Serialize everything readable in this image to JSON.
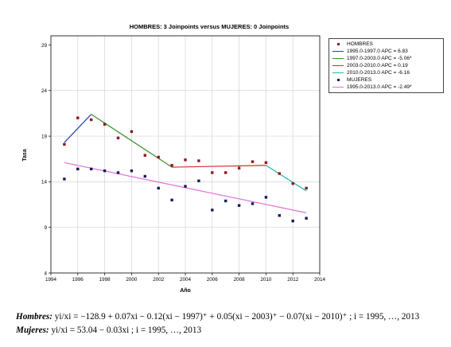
{
  "chart_data": {
    "type": "scatter",
    "title": "HOMBRES: 3 Joinpoints  versus  MUJERES: 0 Joinpoints",
    "xlabel": "Año",
    "ylabel": "Tasa",
    "xlim": [
      1994,
      2014
    ],
    "ylim": [
      4,
      30
    ],
    "xticks": [
      1994,
      1996,
      1998,
      2000,
      2002,
      2004,
      2006,
      2008,
      2010,
      2012,
      2014
    ],
    "yticks": [
      4,
      9,
      14,
      19,
      24,
      29
    ],
    "grid": true,
    "legend_placement": "outside-right",
    "series": [
      {
        "name": "HOMBRES",
        "color": "#8b1a1a",
        "x": [
          1995,
          1996,
          1997,
          1998,
          1999,
          2000,
          2001,
          2002,
          2003,
          2004,
          2005,
          2006,
          2007,
          2008,
          2009,
          2010,
          2011,
          2012,
          2013
        ],
        "y": [
          18.1,
          21.0,
          20.8,
          20.3,
          18.8,
          19.5,
          16.9,
          16.7,
          15.8,
          16.4,
          16.3,
          15.0,
          15.0,
          15.5,
          16.2,
          16.1,
          14.9,
          13.8,
          13.3
        ]
      },
      {
        "name": "MUJERES",
        "color": "#1a1a5a",
        "x": [
          1995,
          1996,
          1997,
          1998,
          1999,
          2000,
          2001,
          2002,
          2003,
          2004,
          2005,
          2006,
          2007,
          2008,
          2009,
          2010,
          2011,
          2012,
          2013
        ],
        "y": [
          14.3,
          15.4,
          15.4,
          15.2,
          15.0,
          15.2,
          14.6,
          13.3,
          12.0,
          13.5,
          14.1,
          10.9,
          11.9,
          11.4,
          11.6,
          12.3,
          10.3,
          9.7,
          10.0
        ]
      }
    ],
    "segments": [
      {
        "label": "1995.0-1997.0 APC =  6.83",
        "color": "#2b3fa8",
        "x": [
          1995,
          1997
        ],
        "y": [
          18.3,
          21.4
        ]
      },
      {
        "label": "1997.0-2003.0 APC = -5.06*",
        "color": "#3a8c2e",
        "x": [
          1997,
          2003
        ],
        "y": [
          21.4,
          15.6
        ]
      },
      {
        "label": "2003.0-2010.0 APC =  0.19",
        "color": "#d62c2c",
        "x": [
          2003,
          2010
        ],
        "y": [
          15.6,
          15.8
        ]
      },
      {
        "label": "2010.0-2013.0 APC = -6.16",
        "color": "#22b5b0",
        "x": [
          2010,
          2013
        ],
        "y": [
          15.8,
          13.0
        ]
      },
      {
        "label": "1995.0-2013.0 APC = -2.49*",
        "color": "#e070d8",
        "x": [
          1995,
          2013
        ],
        "y": [
          16.1,
          10.6
        ]
      }
    ],
    "legend": [
      {
        "kind": "dot",
        "label": "HOMBRES",
        "color": "#8b1a1a"
      },
      {
        "kind": "line",
        "label": "1995.0-1997.0 APC =  6.83",
        "color": "#2b3fa8"
      },
      {
        "kind": "line",
        "label": "1997.0-2003.0 APC = -5.06*",
        "color": "#3a8c2e"
      },
      {
        "kind": "line",
        "label": "2003.0-2010.0 APC =  0.19",
        "color": "#d62c2c"
      },
      {
        "kind": "line",
        "label": "2010.0-2013.0 APC = -6.16",
        "color": "#22b5b0"
      },
      {
        "kind": "dot",
        "label": "MUJERES",
        "color": "#1a1a5a"
      },
      {
        "kind": "line",
        "label": "1995.0-2013.0 APC = -2.49*",
        "color": "#e070d8"
      }
    ]
  },
  "equations": {
    "hombres_label": "Hombres:",
    "hombres_formula": "yi/xi = −128.9 + 0.07xi − 0.12(xi − 1997)⁺ + 0.05(xi − 2003)⁺ − 0.07(xi − 2010)⁺ ; i = 1995, …, 2013",
    "mujeres_label": "Mujeres:",
    "mujeres_formula": "yi/xi = 53.04 − 0.03xi ; i = 1995, …, 2013"
  }
}
